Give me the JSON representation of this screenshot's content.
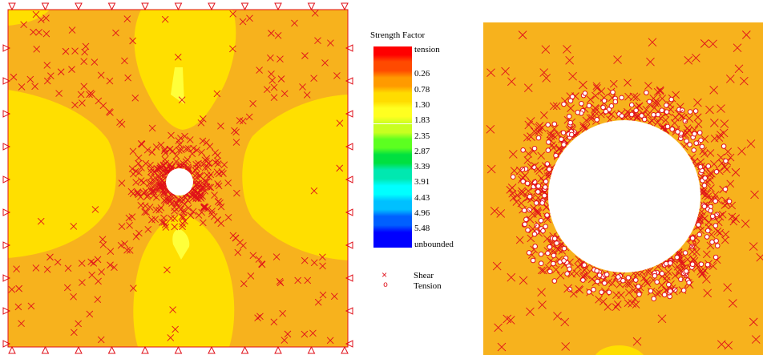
{
  "legend": {
    "title": "Strength Factor",
    "entries": [
      {
        "label": "tension",
        "color": "#ff0000"
      },
      {
        "label": "0.26",
        "color": "#ff4a00"
      },
      {
        "label": "0.78",
        "color": "#ff9a00"
      },
      {
        "label": "1.30",
        "color": "#ffdc00"
      },
      {
        "label": "1.83",
        "color": "#ffff20"
      },
      {
        "label": "2.35",
        "color": "#c8ff20"
      },
      {
        "label": "2.87",
        "color": "#5cff20"
      },
      {
        "label": "3.39",
        "color": "#00e040"
      },
      {
        "label": "3.91",
        "color": "#00e8b0"
      },
      {
        "label": "4.43",
        "color": "#00ffff"
      },
      {
        "label": "4.96",
        "color": "#00c0ff"
      },
      {
        "label": "5.48",
        "color": "#0060ff"
      },
      {
        "label": "unbounded",
        "color": "#0000ff"
      }
    ],
    "markers": {
      "shear": {
        "symbol": "×",
        "label": "Shear"
      },
      "tension": {
        "symbol": "o",
        "label": "Tension"
      }
    }
  },
  "colors": {
    "orange_zone": "#f7b21d",
    "yellow_zone": "#ffdf00",
    "pale_yellow_zone": "#ffff3a",
    "failure_mark": "#e0101a",
    "hole": "#ffffff",
    "boundary": "#e0101a"
  }
}
